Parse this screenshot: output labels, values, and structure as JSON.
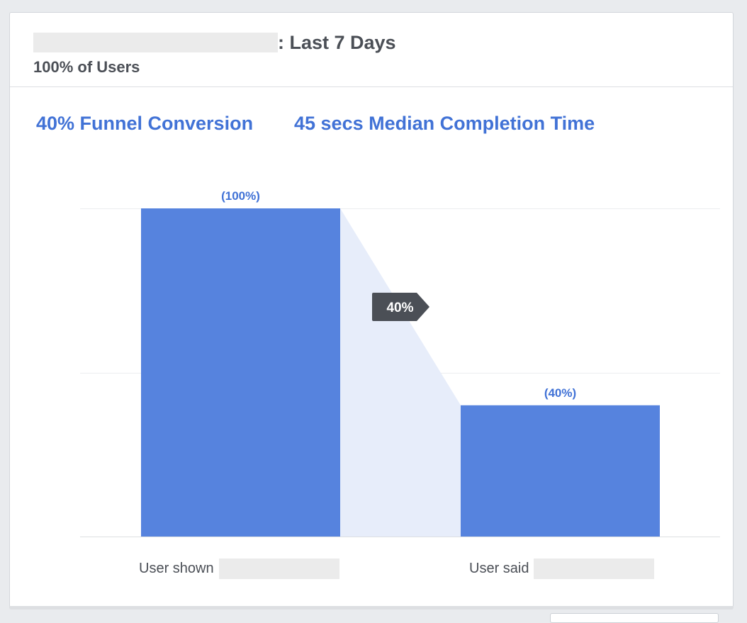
{
  "header": {
    "title_suffix": ": Last 7 Days",
    "subtitle": "100% of Users"
  },
  "metrics": {
    "conversion": "40% Funnel Conversion",
    "completion_time": "45 secs Median Completion Time"
  },
  "chart_data": {
    "type": "bar",
    "categories": [
      "User shown",
      "User said"
    ],
    "values": [
      100,
      40
    ],
    "value_labels": [
      "(100%)",
      "(40%)"
    ],
    "ylim": [
      0,
      100
    ],
    "grid": true,
    "step_conversion_label": "40%",
    "colors": {
      "bar": "#5683de",
      "connector": "#e7edfa",
      "value_label": "#4172d6",
      "badge": "#4b4f56"
    }
  }
}
